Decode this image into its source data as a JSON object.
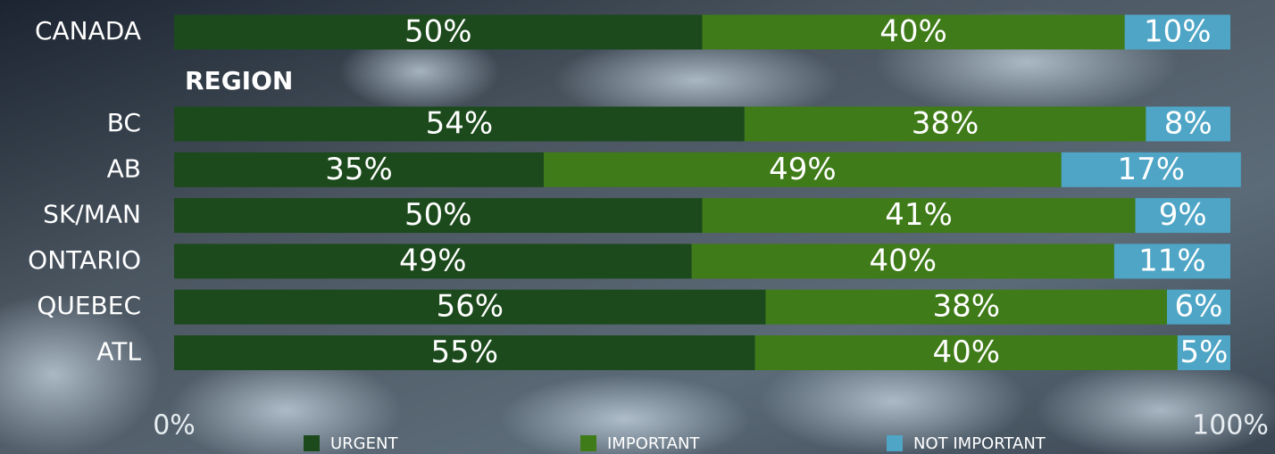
{
  "chart_data": {
    "type": "bar",
    "orientation": "horizontal",
    "stacked": true,
    "categories": [
      "CANADA",
      "BC",
      "AB",
      "SK/MAN",
      "ONTARIO",
      "QUEBEC",
      "ATL"
    ],
    "annotations": [
      "REGION"
    ],
    "series": [
      {
        "name": "URGENT",
        "color": "#1c4a1c",
        "values": [
          50,
          54,
          35,
          50,
          49,
          56,
          55
        ],
        "value_labels": [
          "50%",
          "54%",
          "35%",
          "50%",
          "49%",
          "56%",
          "55%"
        ]
      },
      {
        "name": "IMPORTANT",
        "color": "#3f7b18",
        "values": [
          40,
          38,
          49,
          41,
          40,
          38,
          40
        ],
        "value_labels": [
          "40%",
          "38%",
          "49%",
          "41%",
          "40%",
          "38%",
          "40%"
        ]
      },
      {
        "name": "NOT IMPORTANT",
        "color": "#4ea5c6",
        "values": [
          10,
          8,
          17,
          9,
          11,
          6,
          5
        ],
        "value_labels": [
          "10%",
          "8%",
          "17%",
          "9%",
          "11%",
          "6%",
          "5%"
        ]
      }
    ],
    "xlim": [
      0,
      100
    ],
    "xticks": [
      {
        "value": 0,
        "label": "0%"
      },
      {
        "value": 100,
        "label": "100%"
      }
    ],
    "legend": "bottom"
  }
}
